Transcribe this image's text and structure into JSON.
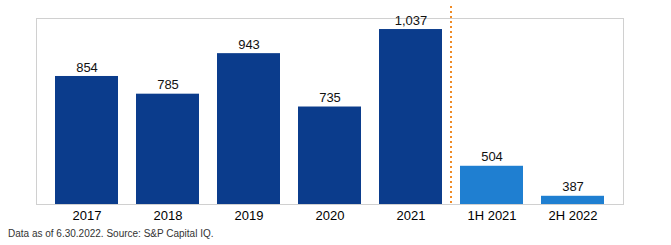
{
  "chart_data": {
    "type": "bar",
    "categories": [
      "2017",
      "2018",
      "2019",
      "2020",
      "2021",
      "1H 2021",
      "2H 2022"
    ],
    "values": [
      854,
      785,
      943,
      735,
      1037,
      504,
      387
    ],
    "value_labels": [
      "854",
      "785",
      "943",
      "735",
      "1,037",
      "504",
      "387"
    ],
    "colors": [
      "#0b3c8c",
      "#0b3c8c",
      "#0b3c8c",
      "#0b3c8c",
      "#0b3c8c",
      "#1f7fd1",
      "#1f7fd1"
    ],
    "ylim": [
      355,
      1080
    ],
    "yticks": [],
    "data_labels": true,
    "tick_labels": "x",
    "grid": false,
    "caption": "Data as of 6.30.2022. Source: S&P Capital IQ."
  }
}
